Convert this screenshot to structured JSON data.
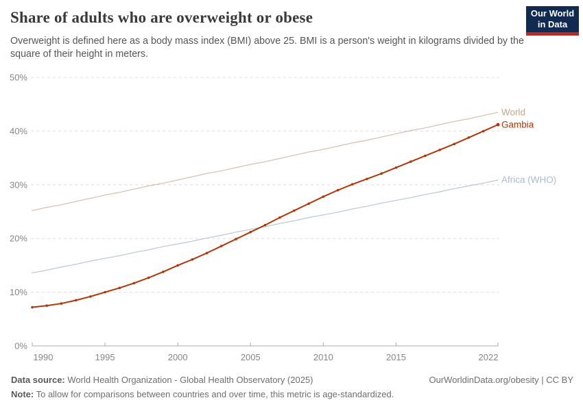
{
  "header": {
    "title": "Share of adults who are overweight or obese",
    "subtitle": "Overweight is defined here as a body mass index (BMI) above 25. BMI is a person's weight in kilograms divided by the square of their height in meters.",
    "logo": {
      "line1": "Our World",
      "line2": "in Data",
      "bg_color": "#102A52",
      "stripe_color": "#C3271C"
    }
  },
  "chart_data": {
    "type": "line",
    "title": "Share of adults who are overweight or obese",
    "xlabel": "",
    "ylabel": "",
    "xlim": [
      1990,
      2022
    ],
    "ylim": [
      0,
      50
    ],
    "grid": "horizontal-dashed",
    "legend_position": "right-end-labels",
    "y_ticks": [
      0,
      10,
      20,
      30,
      40,
      50
    ],
    "y_tick_suffix": "%",
    "x_ticks": [
      1990,
      1995,
      2000,
      2005,
      2010,
      2015,
      2022
    ],
    "x": [
      1990,
      1991,
      1992,
      1993,
      1994,
      1995,
      1996,
      1997,
      1998,
      1999,
      2000,
      2001,
      2002,
      2003,
      2004,
      2005,
      2006,
      2007,
      2008,
      2009,
      2010,
      2011,
      2012,
      2013,
      2014,
      2015,
      2016,
      2017,
      2018,
      2019,
      2020,
      2021,
      2022
    ],
    "series": [
      {
        "name": "World",
        "slug": "world",
        "color": "#C9A887",
        "line_width": 1.2,
        "line_opacity": 0.75,
        "markers": false,
        "values": [
          25.2,
          25.8,
          26.3,
          26.9,
          27.5,
          28.1,
          28.6,
          29.2,
          29.8,
          30.3,
          30.9,
          31.5,
          32.1,
          32.6,
          33.2,
          33.8,
          34.3,
          34.9,
          35.5,
          36.1,
          36.6,
          37.2,
          37.8,
          38.3,
          38.9,
          39.5,
          40.1,
          40.6,
          41.2,
          41.8,
          42.3,
          42.9,
          43.5
        ]
      },
      {
        "name": "Africa (WHO)",
        "slug": "africa-who",
        "color": "#A9BCD4",
        "line_width": 1.2,
        "line_opacity": 0.85,
        "markers": false,
        "values": [
          13.6,
          14.1,
          14.7,
          15.2,
          15.8,
          16.3,
          16.8,
          17.4,
          17.9,
          18.5,
          19.0,
          19.5,
          20.1,
          20.6,
          21.2,
          21.7,
          22.2,
          22.8,
          23.3,
          23.9,
          24.4,
          24.9,
          25.5,
          26.0,
          26.6,
          27.1,
          27.6,
          28.2,
          28.7,
          29.3,
          29.8,
          30.3,
          30.9
        ]
      },
      {
        "name": "Gambia",
        "slug": "gambia",
        "color": "#B13507",
        "line_width": 2,
        "line_opacity": 1,
        "markers": true,
        "values": [
          7.2,
          7.5,
          7.9,
          8.5,
          9.2,
          10.0,
          10.8,
          11.7,
          12.7,
          13.8,
          15.0,
          16.1,
          17.3,
          18.6,
          19.9,
          21.2,
          22.5,
          23.9,
          25.2,
          26.5,
          27.8,
          29.0,
          30.1,
          31.1,
          32.1,
          33.2,
          34.3,
          35.4,
          36.5,
          37.6,
          38.8,
          40.0,
          41.2
        ]
      }
    ]
  },
  "footer": {
    "data_source_label": "Data source:",
    "data_source_text": " World Health Organization - Global Health Observatory (2025)",
    "link_text": "OurWorldinData.org/obesity | CC BY",
    "note_label": "Note:",
    "note_text": " To allow for comparisons between countries and over time, this metric is age-standardized."
  }
}
